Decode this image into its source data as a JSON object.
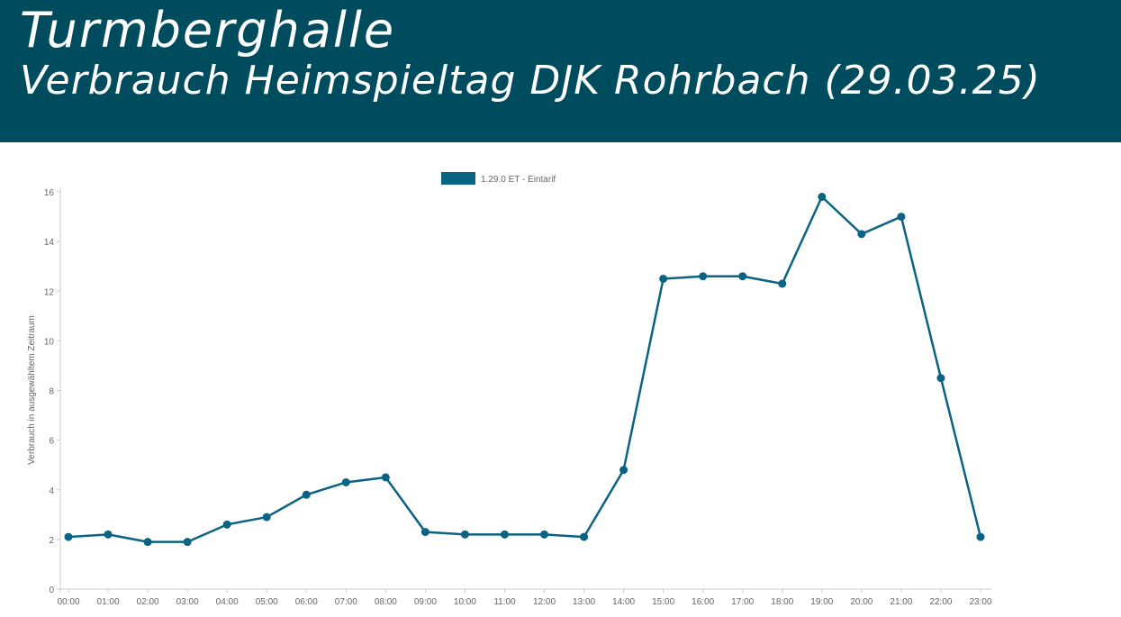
{
  "header": {
    "title": "Turmberghalle",
    "subtitle": "Verbrauch Heimspieltag DJK Rohrbach (29.03.25)"
  },
  "colors": {
    "header_bg": "#004c5f",
    "series": "#0b6383",
    "axis": "#cccccc",
    "text": "#666666"
  },
  "chart_data": {
    "type": "line",
    "x": [
      "00:00",
      "01:00",
      "02:00",
      "03:00",
      "04:00",
      "05:00",
      "06:00",
      "07:00",
      "08:00",
      "09:00",
      "10:00",
      "11:00",
      "12:00",
      "13:00",
      "14:00",
      "15:00",
      "16:00",
      "17:00",
      "18:00",
      "19:00",
      "20:00",
      "21:00",
      "22:00",
      "23:00"
    ],
    "series": [
      {
        "name": "1.29.0 ET - Eintarif",
        "values": [
          2.1,
          2.2,
          1.9,
          1.9,
          2.6,
          2.9,
          3.8,
          4.3,
          4.5,
          2.3,
          2.2,
          2.2,
          2.2,
          2.1,
          4.8,
          12.5,
          12.6,
          12.6,
          12.3,
          15.8,
          14.3,
          15.0,
          8.5,
          2.1
        ]
      }
    ],
    "ylabel": "Verbrauch in ausgewähltem Zeitraum",
    "xlabel": "",
    "ylim": [
      0,
      16
    ],
    "yticks": [
      "0",
      "2",
      "4",
      "6",
      "8",
      "10",
      "12",
      "14",
      "16"
    ],
    "grid": false,
    "legend_position": "top-center"
  }
}
